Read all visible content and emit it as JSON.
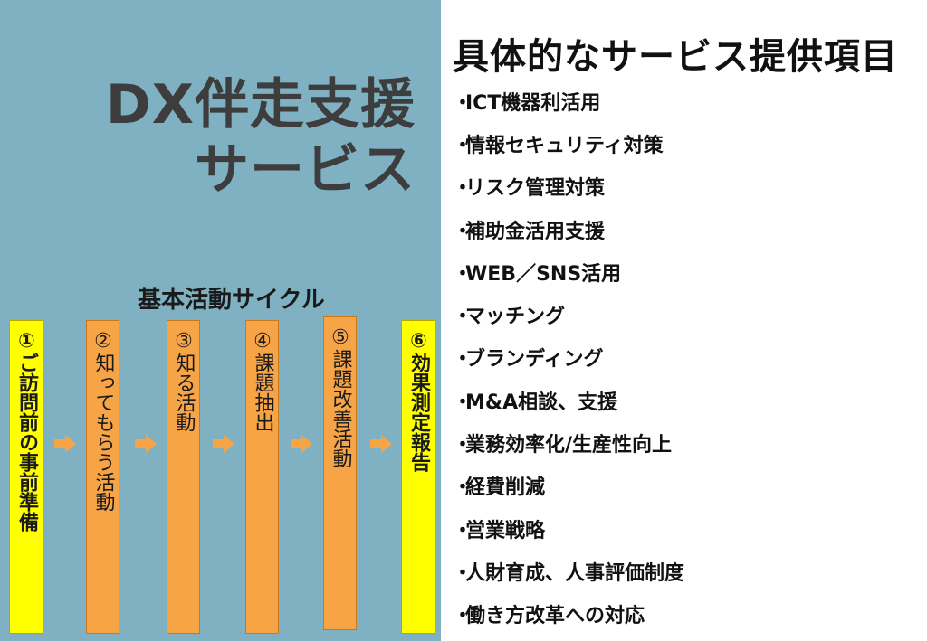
{
  "left": {
    "title_line1": "DX伴走支援",
    "title_line2": "サービス",
    "cycle_heading": "基本活動サイクル",
    "steps": [
      {
        "label": "①ご訪問前の事前準備",
        "style": "yellow"
      },
      {
        "label": "②知ってもらう活動",
        "style": "orange"
      },
      {
        "label": "③知る活動",
        "style": "orange"
      },
      {
        "label": "④課題抽出",
        "style": "orange"
      },
      {
        "label": "⑤課題改善活動",
        "style": "orange"
      },
      {
        "label": "⑥効果測定報告",
        "style": "yellow"
      }
    ],
    "arrow_icon": "right-arrow-icon",
    "colors": {
      "panel": "#7fb1c2",
      "yellow": "#ffff00",
      "orange": "#f7a447",
      "arrow": "#f7a447",
      "title": "#3d3d3d"
    }
  },
  "right": {
    "title": "具体的なサービス提供項目",
    "bullet": "・",
    "items": [
      "ICT機器利活用",
      "情報セキュリティ対策",
      "リスク管理対策",
      "補助金活用支援",
      "WEB／SNS活用",
      "マッチング",
      "ブランディング",
      "M&A相談、支援",
      "業務効率化/生産性向上",
      "経費削減",
      "営業戦略",
      "人財育成、人事評価制度",
      "働き方改革への対応"
    ]
  }
}
